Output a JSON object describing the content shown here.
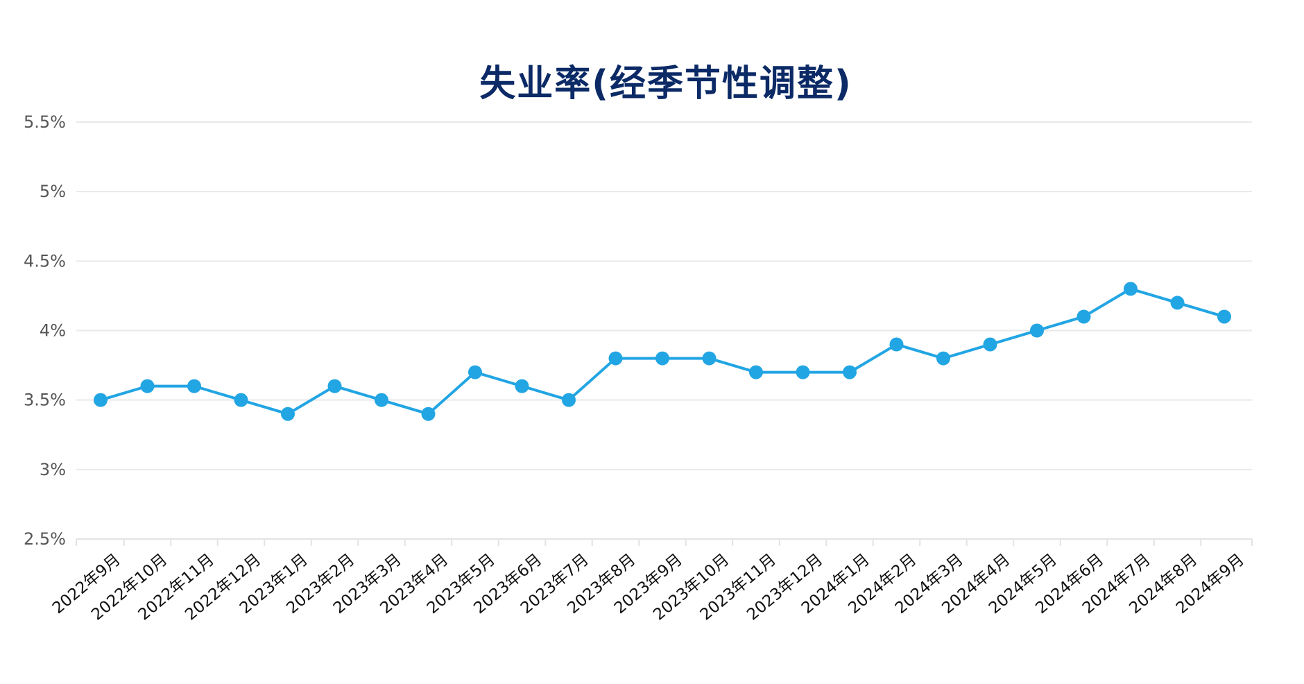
{
  "chart_data": {
    "type": "line",
    "title": "失业率(经季节性调整)",
    "xlabel": "",
    "ylabel": "",
    "categories": [
      "2022年9月",
      "2022年10月",
      "2022年11月",
      "2022年12月",
      "2023年1月",
      "2023年2月",
      "2023年3月",
      "2023年4月",
      "2023年5月",
      "2023年6月",
      "2023年7月",
      "2023年8月",
      "2023年9月",
      "2023年10月",
      "2023年11月",
      "2023年12月",
      "2024年1月",
      "2024年2月",
      "2024年3月",
      "2024年4月",
      "2024年5月",
      "2024年6月",
      "2024年7月",
      "2024年8月",
      "2024年9月"
    ],
    "series": [
      {
        "name": "失业率",
        "values": [
          3.5,
          3.6,
          3.6,
          3.5,
          3.4,
          3.6,
          3.5,
          3.4,
          3.7,
          3.6,
          3.5,
          3.8,
          3.8,
          3.8,
          3.7,
          3.7,
          3.7,
          3.9,
          3.8,
          3.9,
          4.0,
          4.1,
          4.3,
          4.2,
          4.1
        ],
        "color": "#22a5e3"
      }
    ],
    "ylim": [
      2.5,
      5.5
    ],
    "yticks": [
      2.5,
      3,
      3.5,
      4,
      4.5,
      5,
      5.5
    ],
    "ytick_labels": [
      "2.5%",
      "3%",
      "3.5%",
      "4%",
      "4.5%",
      "5%",
      "5.5%"
    ],
    "grid": true,
    "legend": null,
    "markers": true
  },
  "colors": {
    "title": "#0b2a66",
    "line": "#22a5e3",
    "grid": "#e9e9e9",
    "y_label": "#555555",
    "x_label": "#111111"
  }
}
